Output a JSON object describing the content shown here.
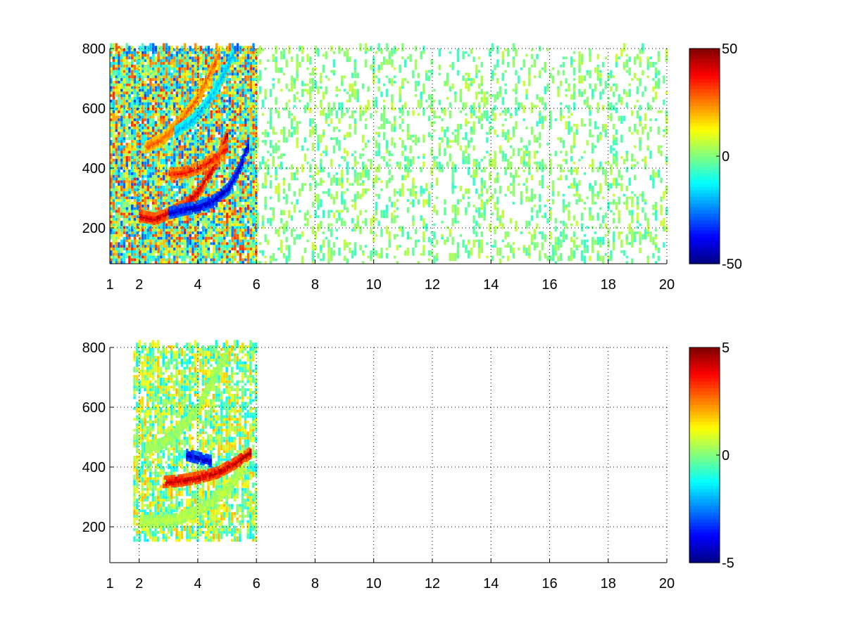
{
  "chart_data": [
    {
      "type": "heatmap",
      "title": "",
      "xlabel": "",
      "ylabel": "",
      "xlim": [
        1,
        20
      ],
      "ylim": [
        80,
        800
      ],
      "x_ticks": [
        "1",
        "2",
        "4",
        "6",
        "8",
        "10",
        "12",
        "14",
        "16",
        "18",
        "20"
      ],
      "x_tick_values": [
        1,
        2,
        4,
        6,
        8,
        10,
        12,
        14,
        16,
        18,
        20
      ],
      "y_ticks": [
        "200",
        "400",
        "600",
        "800"
      ],
      "y_tick_values": [
        200,
        400,
        600,
        800
      ],
      "grid": true,
      "colormap": "jet",
      "colorbar": {
        "min": -50,
        "max": 50,
        "ticks": [
          "50",
          "0",
          "-50"
        ],
        "tick_values": [
          50,
          0,
          -50
        ]
      },
      "features": [
        {
          "name": "",
          "kind": "curve",
          "x": [
            2.0,
            2.5,
            3.0,
            3.5,
            4.0,
            4.5,
            5.0
          ],
          "y": [
            240,
            230,
            250,
            275,
            320,
            400,
            520
          ],
          "value": 45
        },
        {
          "name": "",
          "kind": "curve",
          "x": [
            3.0,
            3.5,
            4.0,
            4.5,
            5.0,
            5.4,
            5.7
          ],
          "y": [
            250,
            262,
            270,
            290,
            330,
            400,
            480
          ],
          "value": -45
        },
        {
          "name": "",
          "kind": "curve",
          "x": [
            2.2,
            2.8,
            3.4,
            4.0,
            4.4,
            4.7
          ],
          "y": [
            470,
            500,
            560,
            640,
            720,
            780
          ],
          "value": 30
        },
        {
          "name": "",
          "kind": "curve",
          "x": [
            3.0,
            3.5,
            4.0,
            4.5,
            5.0
          ],
          "y": [
            380,
            385,
            400,
            430,
            470
          ],
          "value": 38
        },
        {
          "name": "",
          "kind": "curve",
          "x": [
            3.2,
            3.8,
            4.3,
            4.8,
            5.2
          ],
          "y": [
            520,
            560,
            620,
            700,
            790
          ],
          "value": -20
        }
      ],
      "regions": [
        {
          "name": "",
          "x": [
            1.0,
            6.0
          ],
          "y": [
            80,
            800
          ],
          "density": 0.85,
          "value_range": [
            -30,
            35
          ]
        },
        {
          "name": "",
          "x": [
            6.0,
            20.0
          ],
          "y": [
            80,
            800
          ],
          "density": 0.16,
          "value_range": [
            -8,
            8
          ]
        }
      ]
    },
    {
      "type": "heatmap",
      "title": "",
      "xlabel": "",
      "ylabel": "",
      "xlim": [
        1,
        20
      ],
      "ylim": [
        80,
        800
      ],
      "x_ticks": [
        "1",
        "2",
        "4",
        "6",
        "8",
        "10",
        "12",
        "14",
        "16",
        "18",
        "20"
      ],
      "x_tick_values": [
        1,
        2,
        4,
        6,
        8,
        10,
        12,
        14,
        16,
        18,
        20
      ],
      "y_ticks": [
        "200",
        "400",
        "600",
        "800"
      ],
      "y_tick_values": [
        200,
        400,
        600,
        800
      ],
      "grid": true,
      "colormap": "jet",
      "colorbar": {
        "min": -5,
        "max": 5,
        "ticks": [
          "5",
          "0",
          "-5"
        ],
        "tick_values": [
          5,
          0,
          -5
        ]
      },
      "features": [
        {
          "name": "",
          "kind": "curve",
          "x": [
            2.8,
            3.4,
            4.0,
            4.6,
            5.2,
            5.8
          ],
          "y": [
            350,
            355,
            365,
            380,
            410,
            450
          ],
          "value": 4.5
        },
        {
          "name": "",
          "kind": "curve",
          "x": [
            3.6,
            4.0,
            4.4
          ],
          "y": [
            440,
            430,
            420
          ],
          "value": -4.5
        },
        {
          "name": "",
          "kind": "curve",
          "x": [
            2.0,
            2.6,
            3.2,
            3.8,
            4.4,
            5.0,
            5.6
          ],
          "y": [
            220,
            215,
            225,
            245,
            280,
            330,
            400
          ],
          "value": 0.6
        },
        {
          "name": "",
          "kind": "curve",
          "x": [
            2.2,
            2.8,
            3.4,
            4.0,
            4.5,
            5.0
          ],
          "y": [
            460,
            480,
            530,
            600,
            700,
            790
          ],
          "value": 0.4
        }
      ],
      "regions": [
        {
          "name": "",
          "x": [
            1.8,
            6.0
          ],
          "y": [
            150,
            800
          ],
          "density": 0.55,
          "value_range": [
            -1.5,
            2
          ]
        }
      ]
    }
  ]
}
